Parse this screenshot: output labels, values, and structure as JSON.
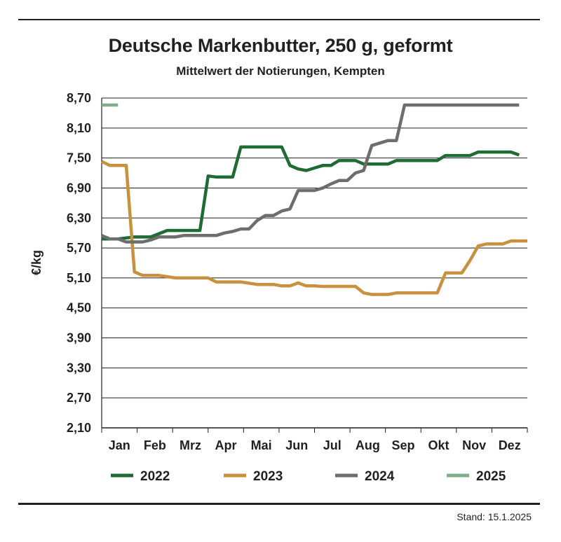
{
  "header": {
    "title": "Deutsche Markenbutter, 250 g, geformt",
    "subtitle": "Mittelwert der Notierungen, Kempten"
  },
  "footer": {
    "stand": "Stand: 15.1.2025"
  },
  "colors": {
    "2022": "#1f6b34",
    "2023": "#c8913d",
    "2024": "#6d6e6c",
    "2025": "#7fae88"
  },
  "chart_data": {
    "type": "line",
    "ylabel": "€/kg",
    "xlabel": "",
    "ylim": [
      2.1,
      8.7
    ],
    "grid": "horizontal",
    "legend_position": "bottom",
    "y_ticks": [
      "8,70",
      "8,10",
      "7,50",
      "6,90",
      "6,30",
      "5,70",
      "5,10",
      "4,50",
      "3,90",
      "3,30",
      "2,70",
      "2,10"
    ],
    "y_tick_values": [
      8.7,
      8.1,
      7.5,
      6.9,
      6.3,
      5.7,
      5.1,
      4.5,
      3.9,
      3.3,
      2.7,
      2.1
    ],
    "categories": [
      "Jan",
      "Feb",
      "Mrz",
      "Apr",
      "Mai",
      "Jun",
      "Jul",
      "Aug",
      "Sep",
      "Okt",
      "Nov",
      "Dez"
    ],
    "series": [
      {
        "name": "2022",
        "x": [
          1,
          3,
          5,
          7,
          9,
          10,
          11,
          12,
          13,
          14,
          15,
          16,
          17,
          18,
          19,
          20,
          21,
          22,
          23,
          24,
          25,
          26,
          27,
          28,
          29,
          30,
          31,
          32,
          33,
          34,
          35,
          36,
          37,
          38,
          39,
          40,
          41,
          42,
          43,
          44,
          45,
          46,
          47,
          48,
          49,
          50,
          51,
          52
        ],
        "y": [
          5.88,
          5.88,
          5.92,
          5.92,
          6.05,
          6.05,
          6.05,
          6.05,
          6.05,
          7.14,
          7.12,
          7.12,
          7.12,
          7.72,
          7.72,
          7.72,
          7.72,
          7.72,
          7.72,
          7.35,
          7.28,
          7.25,
          7.3,
          7.35,
          7.35,
          7.45,
          7.45,
          7.45,
          7.38,
          7.38,
          7.38,
          7.38,
          7.45,
          7.45,
          7.45,
          7.45,
          7.45,
          7.45,
          7.55,
          7.55,
          7.55,
          7.55,
          7.62,
          7.62,
          7.62,
          7.62,
          7.62,
          7.56
        ]
      },
      {
        "name": "2023",
        "x": [
          1,
          2,
          3,
          4,
          5,
          6,
          7,
          8,
          10,
          12,
          14,
          15,
          16,
          18,
          20,
          22,
          23,
          24,
          25,
          26,
          27,
          28,
          30,
          32,
          33,
          34,
          35,
          36,
          37,
          38,
          40,
          42,
          43,
          44,
          45,
          46,
          47,
          48,
          49,
          50,
          51,
          52,
          53
        ],
        "y": [
          7.43,
          7.35,
          7.35,
          7.35,
          5.22,
          5.15,
          5.15,
          5.15,
          5.1,
          5.1,
          5.1,
          5.02,
          5.02,
          5.02,
          4.97,
          4.97,
          4.94,
          4.94,
          5.0,
          4.94,
          4.94,
          4.93,
          4.93,
          4.93,
          4.8,
          4.77,
          4.77,
          4.77,
          4.8,
          4.8,
          4.8,
          4.8,
          5.2,
          5.2,
          5.2,
          5.45,
          5.74,
          5.78,
          5.78,
          5.78,
          5.84,
          5.84,
          5.84
        ]
      },
      {
        "name": "2024",
        "x": [
          1,
          2,
          3,
          4,
          5,
          6,
          7,
          8,
          9,
          10,
          11,
          12,
          13,
          14,
          15,
          16,
          17,
          18,
          19,
          20,
          21,
          22,
          23,
          24,
          25,
          26,
          27,
          28,
          29,
          30,
          31,
          32,
          33,
          34,
          35,
          36,
          37,
          38,
          39,
          40,
          41,
          42,
          43,
          44,
          45,
          46,
          47,
          48,
          49,
          50,
          51,
          52
        ],
        "y": [
          5.95,
          5.88,
          5.88,
          5.82,
          5.82,
          5.82,
          5.86,
          5.92,
          5.92,
          5.92,
          5.95,
          5.95,
          5.95,
          5.95,
          5.95,
          6.0,
          6.03,
          6.08,
          6.08,
          6.25,
          6.35,
          6.35,
          6.44,
          6.48,
          6.85,
          6.85,
          6.85,
          6.9,
          6.98,
          7.05,
          7.05,
          7.2,
          7.25,
          7.75,
          7.8,
          7.85,
          7.85,
          8.56,
          8.56,
          8.56,
          8.56,
          8.56,
          8.56,
          8.56,
          8.56,
          8.56,
          8.56,
          8.56,
          8.56,
          8.56,
          8.56,
          8.56
        ]
      },
      {
        "name": "2025",
        "x": [
          1,
          3
        ],
        "y": [
          8.56,
          8.56
        ]
      }
    ]
  }
}
